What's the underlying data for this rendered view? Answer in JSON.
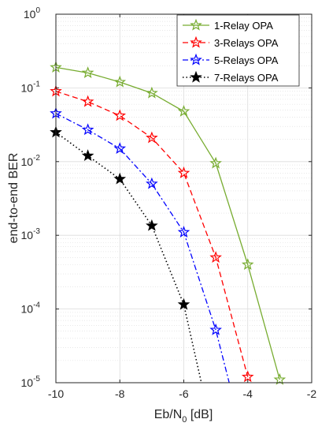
{
  "chart_data": {
    "type": "line",
    "xlabel": {
      "base": "Eb/N",
      "sub": "0",
      "unit": " [dB]"
    },
    "ylabel": "end-to-end BER",
    "xlim": [
      -10,
      -2
    ],
    "ylim": [
      1e-05,
      1
    ],
    "yscale": "log",
    "grid": true,
    "legend_position": "top-right",
    "x_ticks": [
      "-10",
      "-8",
      "-6",
      "-4",
      "-2"
    ],
    "y_ticks": [
      {
        "value": 1.0,
        "base": "10",
        "exp": "0"
      },
      {
        "value": 0.1,
        "base": "10",
        "exp": "-1"
      },
      {
        "value": 0.01,
        "base": "10",
        "exp": "-2"
      },
      {
        "value": 0.001,
        "base": "10",
        "exp": "-3"
      },
      {
        "value": 0.0001,
        "base": "10",
        "exp": "-4"
      },
      {
        "value": 1e-05,
        "base": "10",
        "exp": "-5"
      }
    ],
    "series": [
      {
        "name": "1-Relay OPA",
        "color": "#77ac30",
        "dash": "solid",
        "marker": "star-open",
        "x": [
          -10,
          -9,
          -8,
          -7,
          -6,
          -5,
          -4,
          -3
        ],
        "y": [
          0.19,
          0.16,
          0.12,
          0.085,
          0.048,
          0.0095,
          0.0004,
          1.1e-05
        ]
      },
      {
        "name": "3-Relays OPA",
        "color": "#ff0000",
        "dash": "dashed",
        "marker": "star-open",
        "x": [
          -10,
          -9,
          -8,
          -7,
          -6,
          -5,
          -4
        ],
        "y": [
          0.09,
          0.065,
          0.042,
          0.021,
          0.007,
          0.0005,
          1.2e-05
        ]
      },
      {
        "name": "5-Relays OPA",
        "color": "#0000ff",
        "dash": "dashdot",
        "marker": "star-open",
        "x": [
          -10,
          -9,
          -8,
          -7,
          -6,
          -5,
          -4.58
        ],
        "y": [
          0.045,
          0.027,
          0.015,
          0.005,
          0.0011,
          5.2e-05,
          1e-05
        ],
        "marker_count": 6
      },
      {
        "name": "7-Relays OPA",
        "color": "#000000",
        "dash": "dotted",
        "marker": "star-filled",
        "x": [
          -10,
          -9,
          -8,
          -7,
          -6,
          -5.45
        ],
        "y": [
          0.025,
          0.012,
          0.0058,
          0.00135,
          0.000115,
          1e-05
        ],
        "marker_count": 5
      }
    ]
  }
}
